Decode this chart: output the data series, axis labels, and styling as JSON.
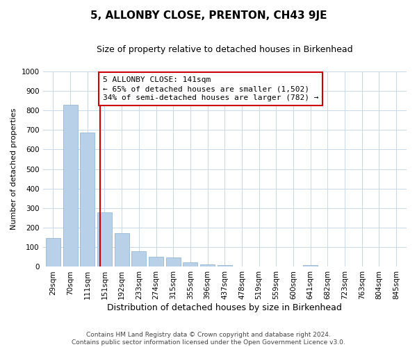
{
  "title": "5, ALLONBY CLOSE, PRENTON, CH43 9JE",
  "subtitle": "Size of property relative to detached houses in Birkenhead",
  "xlabel": "Distribution of detached houses by size in Birkenhead",
  "ylabel": "Number of detached properties",
  "categories": [
    "29sqm",
    "70sqm",
    "111sqm",
    "151sqm",
    "192sqm",
    "233sqm",
    "274sqm",
    "315sqm",
    "355sqm",
    "396sqm",
    "437sqm",
    "478sqm",
    "519sqm",
    "559sqm",
    "600sqm",
    "641sqm",
    "682sqm",
    "723sqm",
    "763sqm",
    "804sqm",
    "845sqm"
  ],
  "values": [
    148,
    828,
    688,
    280,
    172,
    78,
    52,
    48,
    22,
    12,
    10,
    0,
    0,
    0,
    0,
    10,
    0,
    0,
    0,
    0,
    0
  ],
  "bar_color": "#b8d0e8",
  "bar_edge_color": "#88aece",
  "property_line_color": "#cc0000",
  "annotation_title": "5 ALLONBY CLOSE: 141sqm",
  "annotation_line1": "← 65% of detached houses are smaller (1,502)",
  "annotation_line2": "34% of semi-detached houses are larger (782) →",
  "annotation_box_edge_color": "#cc0000",
  "ylim": [
    0,
    1000
  ],
  "yticks": [
    0,
    100,
    200,
    300,
    400,
    500,
    600,
    700,
    800,
    900,
    1000
  ],
  "footer_line1": "Contains HM Land Registry data © Crown copyright and database right 2024.",
  "footer_line2": "Contains public sector information licensed under the Open Government Licence v3.0.",
  "bg_color": "#ffffff",
  "grid_color": "#c8d8e8",
  "title_fontsize": 11,
  "subtitle_fontsize": 9,
  "xlabel_fontsize": 9,
  "ylabel_fontsize": 8,
  "tick_fontsize": 7.5,
  "annotation_fontsize": 8,
  "footer_fontsize": 6.5
}
